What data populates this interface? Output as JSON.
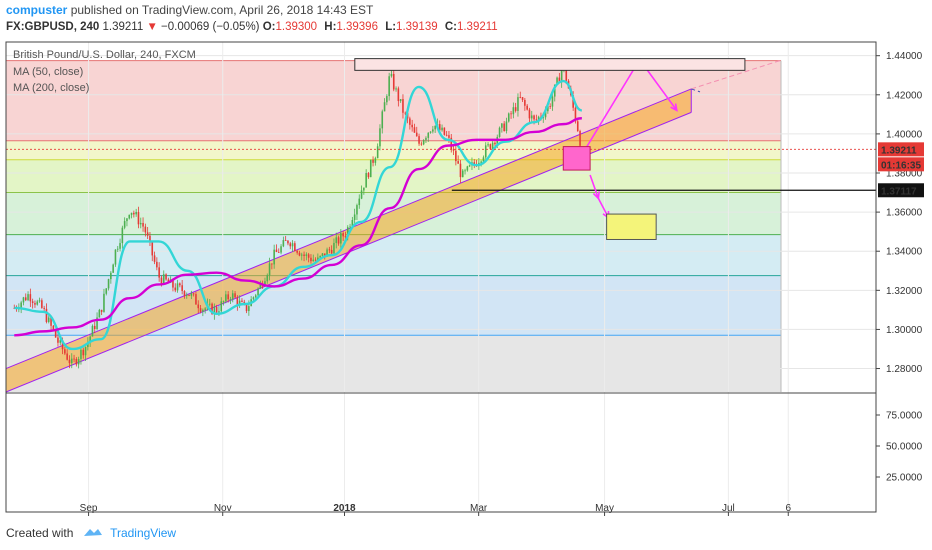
{
  "header": {
    "author": "compuster",
    "published": "published on TradingView.com, April 26, 2018 14:43 EST",
    "symbol": "FX:GBPUSD, 240",
    "last": "1.39211",
    "arrow": "▼",
    "change": "−0.00069 (−0.05%)",
    "o_label": "O:",
    "o_value": "1.39300",
    "h_label": "H:",
    "h_value": "1.39396",
    "l_label": "L:",
    "l_value": "1.39139",
    "c_label": "C:",
    "c_value": "1.39211"
  },
  "legend": {
    "instrument": "British Pound/U.S. Dollar, 240, FXCM",
    "ma1": "MA (50, close)",
    "ma2": "MA (200, close)"
  },
  "footer": {
    "created_with": "Created with",
    "brand": "TradingView"
  },
  "colors": {
    "ma50": "#33d6d6",
    "ma200": "#d400d4",
    "channel_fill": "#f5a623",
    "channel_edge": "#a020f0",
    "arrow": "#ff33ff",
    "up_candle": "#4caf50",
    "down_candle": "#e53935",
    "price_badge": "#e53935",
    "level_badge": "#111111"
  },
  "chart_data": {
    "type": "line",
    "title": "British Pound/U.S. Dollar, 240, FXCM",
    "x_ticks": [
      "Sep",
      "Nov",
      "2018",
      "Mar",
      "May",
      "Jul",
      "6"
    ],
    "y_ticks": [
      "1.44000",
      "1.42000",
      "1.40000",
      "1.38000",
      "1.36000",
      "1.34000",
      "1.32000",
      "1.30000",
      "1.28000"
    ],
    "ylim": [
      1.268,
      1.447
    ],
    "lower_pane_ticks": [
      "75.0000",
      "50.0000",
      "25.0000"
    ],
    "current_price": "1.39211",
    "countdown": "01:16:35",
    "horizontal_level": "1.37117",
    "fib_zone_levels": [
      1.4375,
      1.3965,
      1.3868,
      1.37,
      1.3485,
      1.3275,
      1.297
    ],
    "price_series": {
      "name": "GBPUSD",
      "x": [
        "2017-07-25",
        "2017-08-01",
        "2017-08-08",
        "2017-08-15",
        "2017-08-22",
        "2017-08-29",
        "2017-09-05",
        "2017-09-12",
        "2017-09-19",
        "2017-09-26",
        "2017-10-03",
        "2017-10-10",
        "2017-10-17",
        "2017-10-24",
        "2017-10-31",
        "2017-11-07",
        "2017-11-14",
        "2017-11-21",
        "2017-11-28",
        "2017-12-05",
        "2017-12-12",
        "2017-12-19",
        "2017-12-26",
        "2018-01-02",
        "2018-01-09",
        "2018-01-16",
        "2018-01-23",
        "2018-01-30",
        "2018-02-06",
        "2018-02-13",
        "2018-02-20",
        "2018-02-27",
        "2018-03-06",
        "2018-03-13",
        "2018-03-20",
        "2018-03-27",
        "2018-04-03",
        "2018-04-10",
        "2018-04-17",
        "2018-04-24",
        "2018-04-26"
      ],
      "y": [
        1.311,
        1.318,
        1.31,
        1.294,
        1.282,
        1.292,
        1.31,
        1.34,
        1.362,
        1.352,
        1.327,
        1.322,
        1.319,
        1.311,
        1.31,
        1.318,
        1.31,
        1.322,
        1.338,
        1.346,
        1.338,
        1.335,
        1.342,
        1.35,
        1.371,
        1.39,
        1.43,
        1.41,
        1.395,
        1.405,
        1.398,
        1.378,
        1.386,
        1.395,
        1.405,
        1.418,
        1.406,
        1.414,
        1.435,
        1.403,
        1.392
      ]
    },
    "series": [
      {
        "name": "MA (50, close)",
        "x": [
          "2017-07-25",
          "2017-08-08",
          "2017-08-22",
          "2017-09-05",
          "2017-09-19",
          "2017-10-03",
          "2017-10-17",
          "2017-10-31",
          "2017-11-14",
          "2017-11-28",
          "2017-12-12",
          "2017-12-26",
          "2018-01-09",
          "2018-01-23",
          "2018-02-06",
          "2018-02-20",
          "2018-03-06",
          "2018-03-20",
          "2018-04-03",
          "2018-04-17",
          "2018-04-26"
        ],
        "values": [
          1.311,
          1.309,
          1.29,
          1.295,
          1.345,
          1.345,
          1.33,
          1.308,
          1.313,
          1.322,
          1.332,
          1.338,
          1.355,
          1.383,
          1.424,
          1.397,
          1.384,
          1.396,
          1.406,
          1.427,
          1.412
        ]
      },
      {
        "name": "MA (200, close)",
        "x": [
          "2017-07-25",
          "2017-08-08",
          "2017-08-22",
          "2017-09-05",
          "2017-09-19",
          "2017-10-03",
          "2017-10-17",
          "2017-10-31",
          "2017-11-14",
          "2017-11-28",
          "2017-12-12",
          "2017-12-26",
          "2018-01-09",
          "2018-01-23",
          "2018-02-06",
          "2018-02-20",
          "2018-03-06",
          "2018-03-20",
          "2018-04-03",
          "2018-04-17",
          "2018-04-26"
        ],
        "values": [
          1.297,
          1.299,
          1.301,
          1.305,
          1.316,
          1.323,
          1.328,
          1.329,
          1.325,
          1.322,
          1.326,
          1.333,
          1.343,
          1.362,
          1.382,
          1.394,
          1.397,
          1.397,
          1.401,
          1.405,
          1.408
        ]
      }
    ],
    "trend_channel": {
      "start": [
        "2017-07-21",
        1.268
      ],
      "end": [
        "2018-06-18",
        1.411
      ],
      "width": 0.012
    },
    "annotations": [
      {
        "type": "projection-arrows",
        "path": [
          [
            "2018-04-27",
            1.391
          ],
          [
            "2018-05-24",
            1.438
          ],
          [
            "2018-06-11",
            1.412
          ]
        ]
      },
      {
        "type": "projection-arrows",
        "path": [
          [
            "2018-04-30",
            1.379
          ],
          [
            "2018-05-04",
            1.367
          ],
          [
            "2018-05-09",
            1.357
          ]
        ]
      },
      {
        "type": "target-box",
        "from": [
          "2018-05-08",
          1.359
        ],
        "to": [
          "2018-06-01",
          1.346
        ]
      },
      {
        "type": "entry-box",
        "from": [
          "2018-04-17",
          1.3935
        ],
        "to": [
          "2018-04-30",
          1.3815
        ]
      },
      {
        "type": "resistance-box",
        "from": [
          "2018-01-06",
          1.4385
        ],
        "to": [
          "2018-07-14",
          1.4325
        ]
      }
    ],
    "grid": true,
    "legend_position": "top-left"
  }
}
